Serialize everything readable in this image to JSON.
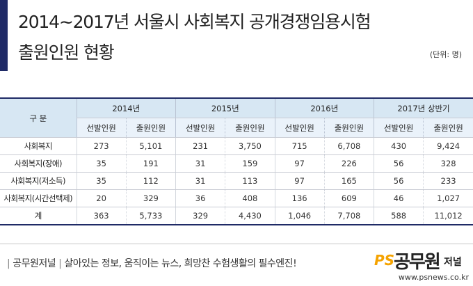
{
  "title": {
    "line1": "2014~2017년 서울시 사회복지 공개경쟁임용시험",
    "line2": "출원인원 현황",
    "unit": "(단위: 명)"
  },
  "chart_data": {
    "type": "table",
    "header": {
      "category_label": "구 분",
      "groups": [
        "2014년",
        "2015년",
        "2016년",
        "2017년 상반기"
      ],
      "sub_columns": [
        "선발인원",
        "출원인원"
      ]
    },
    "rows": [
      {
        "category": "사회복지",
        "values": [
          "273",
          "5,101",
          "231",
          "3,750",
          "715",
          "6,708",
          "430",
          "9,424"
        ]
      },
      {
        "category": "사회복지(장애)",
        "values": [
          "35",
          "191",
          "31",
          "159",
          "97",
          "226",
          "56",
          "328"
        ]
      },
      {
        "category": "사회복지(저소득)",
        "values": [
          "35",
          "112",
          "31",
          "113",
          "97",
          "165",
          "56",
          "233"
        ]
      },
      {
        "category": "사회복지(시간선택제)",
        "values": [
          "20",
          "329",
          "36",
          "408",
          "136",
          "609",
          "46",
          "1,027"
        ]
      },
      {
        "category": "계",
        "values": [
          "363",
          "5,733",
          "329",
          "4,430",
          "1,046",
          "7,708",
          "588",
          "11,012"
        ]
      }
    ]
  },
  "footer": {
    "brand": "공무원저널",
    "slogan": "살아있는 정보, 움직이는 뉴스, 희망찬 수험생활의 필수엔진!",
    "logo_ps": "PS",
    "logo_name": "공무원",
    "logo_sub": "저널",
    "url": "www.psnews.co.kr"
  },
  "colors": {
    "title_bar": "#1f2a66",
    "header_bg": "#d7e7f3",
    "subheader_bg": "#eaf2fa",
    "logo_accent": "#f5a300"
  }
}
